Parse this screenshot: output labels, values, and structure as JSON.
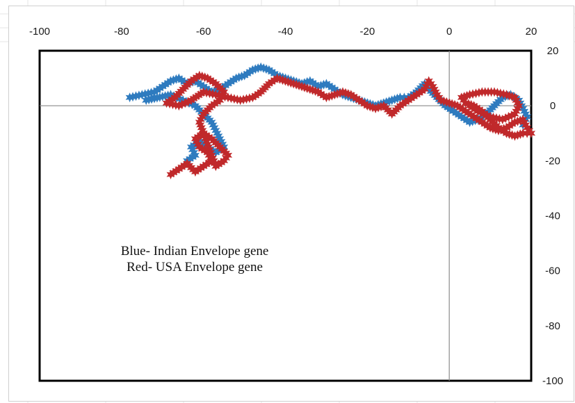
{
  "chart_data": {
    "type": "scatter",
    "title": "",
    "xlabel": "",
    "ylabel": "",
    "xlim": [
      -100,
      20
    ],
    "ylim": [
      -100,
      20
    ],
    "x_ticks": [
      "-100",
      "-80",
      "-60",
      "-40",
      "-20",
      "0",
      "20"
    ],
    "y_ticks": [
      "20",
      "0",
      "-20",
      "-40",
      "-60",
      "-80",
      "-100"
    ],
    "grid": false,
    "marker": "star",
    "annotations": [
      "Blue-  Indian Envelope gene",
      "Red- USA Envelope gene"
    ],
    "series": [
      {
        "color": "#2e7bbf",
        "points": [
          [
            -78,
            3
          ],
          [
            -75,
            4
          ],
          [
            -72,
            5
          ],
          [
            -70,
            7
          ],
          [
            -68,
            9
          ],
          [
            -66,
            10
          ],
          [
            -64,
            8
          ],
          [
            -62,
            9
          ],
          [
            -60,
            7
          ],
          [
            -58,
            5
          ],
          [
            -56,
            6
          ],
          [
            -54,
            8
          ],
          [
            -52,
            10
          ],
          [
            -50,
            11
          ],
          [
            -48,
            13
          ],
          [
            -46,
            14
          ],
          [
            -44,
            13
          ],
          [
            -42,
            11
          ],
          [
            -40,
            10
          ],
          [
            -38,
            9
          ],
          [
            -36,
            8
          ],
          [
            -34,
            9
          ],
          [
            -32,
            7
          ],
          [
            -30,
            8
          ],
          [
            -28,
            6
          ],
          [
            -26,
            4
          ],
          [
            -24,
            3
          ],
          [
            -22,
            2
          ],
          [
            -20,
            1
          ],
          [
            -18,
            0
          ],
          [
            -16,
            1
          ],
          [
            -14,
            2
          ],
          [
            -12,
            3
          ],
          [
            -10,
            3
          ],
          [
            -8,
            5
          ],
          [
            -6,
            8
          ],
          [
            -5,
            6
          ],
          [
            -3,
            3
          ],
          [
            -1,
            0
          ],
          [
            1,
            -2
          ],
          [
            3,
            -4
          ],
          [
            5,
            -6
          ],
          [
            7,
            -5
          ],
          [
            9,
            -3
          ],
          [
            11,
            0
          ],
          [
            13,
            3
          ],
          [
            15,
            4
          ],
          [
            17,
            2
          ],
          [
            18,
            -1
          ],
          [
            19,
            -4
          ],
          [
            18,
            -7
          ],
          [
            -72,
            3
          ],
          [
            -74,
            2
          ],
          [
            -68,
            4
          ],
          [
            -65,
            2
          ],
          [
            -62,
            0
          ],
          [
            -60,
            -3
          ],
          [
            -58,
            -6
          ],
          [
            -57,
            -9
          ],
          [
            -56,
            -12
          ],
          [
            -55,
            -15
          ],
          [
            -57,
            -17
          ],
          [
            -59,
            -15
          ],
          [
            -61,
            -13
          ],
          [
            -63,
            -15
          ],
          [
            -62,
            -18
          ],
          [
            -64,
            -20
          ]
        ]
      },
      {
        "color": "#c0292b",
        "points": [
          [
            -68,
            -25
          ],
          [
            -66,
            -23
          ],
          [
            -64,
            -21
          ],
          [
            -62,
            -24
          ],
          [
            -60,
            -22
          ],
          [
            -58,
            -20
          ],
          [
            -59,
            -17
          ],
          [
            -61,
            -15
          ],
          [
            -62,
            -12
          ],
          [
            -60,
            -10
          ],
          [
            -58,
            -12
          ],
          [
            -56,
            -15
          ],
          [
            -54,
            -18
          ],
          [
            -55,
            -20
          ],
          [
            -57,
            -22
          ],
          [
            -58,
            -18
          ],
          [
            -59,
            -14
          ],
          [
            -60,
            -10
          ],
          [
            -61,
            -6
          ],
          [
            -60,
            -3
          ],
          [
            -58,
            0
          ],
          [
            -56,
            2
          ],
          [
            -55,
            5
          ],
          [
            -57,
            8
          ],
          [
            -59,
            10
          ],
          [
            -61,
            11
          ],
          [
            -63,
            9
          ],
          [
            -65,
            6
          ],
          [
            -67,
            3
          ],
          [
            -69,
            1
          ],
          [
            -66,
            0
          ],
          [
            -63,
            2
          ],
          [
            -60,
            5
          ],
          [
            -57,
            4
          ],
          [
            -54,
            3
          ],
          [
            -51,
            2
          ],
          [
            -48,
            3
          ],
          [
            -46,
            5
          ],
          [
            -44,
            8
          ],
          [
            -42,
            10
          ],
          [
            -40,
            9
          ],
          [
            -38,
            8
          ],
          [
            -36,
            7
          ],
          [
            -34,
            6
          ],
          [
            -32,
            5
          ],
          [
            -30,
            3
          ],
          [
            -28,
            4
          ],
          [
            -26,
            5
          ],
          [
            -24,
            4
          ],
          [
            -22,
            2
          ],
          [
            -20,
            0
          ],
          [
            -18,
            -1
          ],
          [
            -16,
            0
          ],
          [
            -14,
            -3
          ],
          [
            -12,
            0
          ],
          [
            -10,
            2
          ],
          [
            -8,
            4
          ],
          [
            -6,
            6
          ],
          [
            -5,
            9
          ],
          [
            -4,
            7
          ],
          [
            -3,
            4
          ],
          [
            -2,
            2
          ],
          [
            0,
            1
          ],
          [
            2,
            0
          ],
          [
            4,
            -2
          ],
          [
            6,
            -4
          ],
          [
            8,
            -6
          ],
          [
            10,
            -8
          ],
          [
            12,
            -9
          ],
          [
            14,
            -8
          ],
          [
            16,
            -6
          ],
          [
            18,
            -5
          ],
          [
            19,
            -8
          ],
          [
            20,
            -10
          ],
          [
            18,
            -10
          ],
          [
            16,
            -11
          ],
          [
            14,
            -10
          ],
          [
            12,
            -8
          ],
          [
            10,
            -5
          ],
          [
            8,
            -2
          ],
          [
            6,
            0
          ],
          [
            4,
            1
          ],
          [
            3,
            3
          ],
          [
            5,
            4
          ],
          [
            8,
            5
          ],
          [
            11,
            5
          ],
          [
            14,
            4
          ],
          [
            16,
            3
          ],
          [
            17,
            0
          ],
          [
            16,
            -3
          ],
          [
            13,
            -5
          ],
          [
            10,
            -4
          ],
          [
            7,
            -2
          ],
          [
            5,
            0
          ]
        ]
      }
    ]
  }
}
